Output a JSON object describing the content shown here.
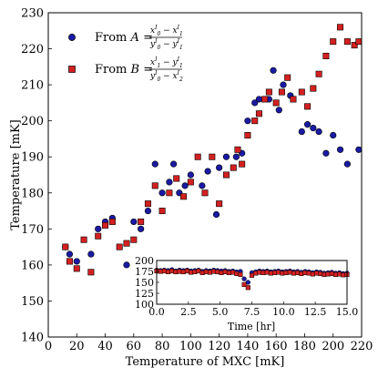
{
  "chart_data": [
    {
      "type": "scatter",
      "xlabel": "Temperature of MXC [mK]",
      "ylabel": "Temperature [mK]",
      "xlim": [
        0,
        220
      ],
      "ylim": [
        140,
        230
      ],
      "xticks": [
        0,
        20,
        40,
        60,
        80,
        100,
        120,
        140,
        160,
        180,
        200,
        220
      ],
      "yticks": [
        140,
        150,
        160,
        170,
        180,
        190,
        200,
        210,
        220,
        230
      ],
      "legend_position": "top-left",
      "series": [
        {
          "name": "From A",
          "marker": "circle",
          "color": "#1a1aa6",
          "points": [
            [
              12,
              165
            ],
            [
              15,
              163
            ],
            [
              20,
              161
            ],
            [
              30,
              163
            ],
            [
              35,
              170
            ],
            [
              40,
              172
            ],
            [
              45,
              173
            ],
            [
              55,
              160
            ],
            [
              60,
              172
            ],
            [
              65,
              170
            ],
            [
              70,
              175
            ],
            [
              75,
              188
            ],
            [
              80,
              180
            ],
            [
              85,
              183
            ],
            [
              88,
              188
            ],
            [
              92,
              180
            ],
            [
              96,
              182
            ],
            [
              100,
              185
            ],
            [
              108,
              182
            ],
            [
              112,
              186
            ],
            [
              118,
              174
            ],
            [
              120,
              187
            ],
            [
              125,
              190
            ],
            [
              132,
              190
            ],
            [
              136,
              191
            ],
            [
              140,
              200
            ],
            [
              145,
              205
            ],
            [
              148,
              206
            ],
            [
              155,
              206
            ],
            [
              158,
              214
            ],
            [
              162,
              203
            ],
            [
              165,
              210
            ],
            [
              170,
              207
            ],
            [
              178,
              197
            ],
            [
              182,
              199
            ],
            [
              186,
              198
            ],
            [
              190,
              197
            ],
            [
              195,
              191
            ],
            [
              200,
              196
            ],
            [
              205,
              192
            ],
            [
              210,
              188
            ],
            [
              218,
              192
            ]
          ]
        },
        {
          "name": "From B",
          "marker": "square",
          "color": "#d42020",
          "points": [
            [
              12,
              165
            ],
            [
              15,
              161
            ],
            [
              20,
              159
            ],
            [
              25,
              167
            ],
            [
              30,
              158
            ],
            [
              35,
              168
            ],
            [
              40,
              171
            ],
            [
              45,
              172
            ],
            [
              50,
              165
            ],
            [
              55,
              166
            ],
            [
              60,
              167
            ],
            [
              65,
              172
            ],
            [
              70,
              177
            ],
            [
              75,
              182
            ],
            [
              80,
              175
            ],
            [
              85,
              180
            ],
            [
              90,
              184
            ],
            [
              95,
              179
            ],
            [
              100,
              183
            ],
            [
              105,
              190
            ],
            [
              110,
              180
            ],
            [
              115,
              190
            ],
            [
              120,
              177
            ],
            [
              125,
              185
            ],
            [
              130,
              187
            ],
            [
              133,
              192
            ],
            [
              136,
              188
            ],
            [
              140,
              196
            ],
            [
              145,
              200
            ],
            [
              148,
              202
            ],
            [
              152,
              206
            ],
            [
              155,
              208
            ],
            [
              160,
              205
            ],
            [
              164,
              208
            ],
            [
              168,
              212
            ],
            [
              172,
              206
            ],
            [
              178,
              208
            ],
            [
              182,
              204
            ],
            [
              186,
              209
            ],
            [
              190,
              213
            ],
            [
              195,
              218
            ],
            [
              200,
              222
            ],
            [
              205,
              226
            ],
            [
              210,
              222
            ],
            [
              215,
              221
            ],
            [
              218,
              222
            ]
          ]
        }
      ]
    },
    {
      "type": "scatter",
      "xlabel": "Time [hr]",
      "ylabel": "",
      "xlim": [
        0,
        15
      ],
      "ylim": [
        100,
        200
      ],
      "xticks": [
        "0.0",
        "2.5",
        "5.0",
        "7.5",
        "10.0",
        "12.5",
        "15.0"
      ],
      "yticks": [
        "100",
        "125",
        "150",
        "175",
        "200"
      ],
      "series": [
        {
          "name": "From A",
          "marker": "circle",
          "color": "#1a1aa6",
          "points": [
            [
              0.0,
              178
            ],
            [
              0.3,
              177
            ],
            [
              0.6,
              178
            ],
            [
              0.9,
              177
            ],
            [
              1.2,
              179
            ],
            [
              1.5,
              176
            ],
            [
              1.8,
              178
            ],
            [
              2.1,
              177
            ],
            [
              2.4,
              178
            ],
            [
              2.7,
              176
            ],
            [
              3.0,
              177
            ],
            [
              3.3,
              178
            ],
            [
              3.6,
              175
            ],
            [
              3.9,
              177
            ],
            [
              4.2,
              176
            ],
            [
              4.5,
              178
            ],
            [
              4.8,
              177
            ],
            [
              5.1,
              176
            ],
            [
              5.4,
              177
            ],
            [
              5.7,
              175
            ],
            [
              6.0,
              176
            ],
            [
              6.3,
              174
            ],
            [
              6.6,
              175
            ],
            [
              6.9,
              158
            ],
            [
              7.2,
              150
            ],
            [
              7.5,
              172
            ],
            [
              7.8,
              174
            ],
            [
              8.1,
              176
            ],
            [
              8.4,
              175
            ],
            [
              8.7,
              176
            ],
            [
              9.0,
              174
            ],
            [
              9.3,
              175
            ],
            [
              9.6,
              176
            ],
            [
              9.9,
              174
            ],
            [
              10.2,
              175
            ],
            [
              10.5,
              176
            ],
            [
              10.8,
              174
            ],
            [
              11.1,
              175
            ],
            [
              11.4,
              173
            ],
            [
              11.7,
              175
            ],
            [
              12.0,
              174
            ],
            [
              12.3,
              172
            ],
            [
              12.6,
              174
            ],
            [
              12.9,
              173
            ],
            [
              13.2,
              171
            ],
            [
              13.5,
              172
            ],
            [
              13.8,
              173
            ],
            [
              14.1,
              171
            ],
            [
              14.4,
              172
            ],
            [
              14.7,
              170
            ],
            [
              15.0,
              171
            ]
          ]
        },
        {
          "name": "From B",
          "marker": "square",
          "color": "#d42020",
          "points": [
            [
              0.0,
              176
            ],
            [
              0.3,
              175
            ],
            [
              0.6,
              176
            ],
            [
              0.9,
              174
            ],
            [
              1.2,
              176
            ],
            [
              1.5,
              174
            ],
            [
              1.8,
              175
            ],
            [
              2.1,
              174
            ],
            [
              2.4,
              176
            ],
            [
              2.7,
              173
            ],
            [
              3.0,
              174
            ],
            [
              3.3,
              176
            ],
            [
              3.6,
              172
            ],
            [
              3.9,
              174
            ],
            [
              4.2,
              173
            ],
            [
              4.5,
              175
            ],
            [
              4.8,
              174
            ],
            [
              5.1,
              172
            ],
            [
              5.4,
              174
            ],
            [
              5.7,
              172
            ],
            [
              6.0,
              173
            ],
            [
              6.3,
              170
            ],
            [
              6.6,
              168
            ],
            [
              6.9,
              145
            ],
            [
              7.2,
              138
            ],
            [
              7.5,
              166
            ],
            [
              7.8,
              171
            ],
            [
              8.1,
              173
            ],
            [
              8.4,
              172
            ],
            [
              8.7,
              173
            ],
            [
              9.0,
              171
            ],
            [
              9.3,
              172
            ],
            [
              9.6,
              173
            ],
            [
              9.9,
              171
            ],
            [
              10.2,
              172
            ],
            [
              10.5,
              173
            ],
            [
              10.8,
              171
            ],
            [
              11.1,
              172
            ],
            [
              11.4,
              170
            ],
            [
              11.7,
              172
            ],
            [
              12.0,
              171
            ],
            [
              12.3,
              169
            ],
            [
              12.6,
              171
            ],
            [
              12.9,
              170
            ],
            [
              13.2,
              168
            ],
            [
              13.5,
              169
            ],
            [
              13.8,
              170
            ],
            [
              14.1,
              168
            ],
            [
              14.4,
              169
            ],
            [
              14.7,
              167
            ],
            [
              15.0,
              168
            ]
          ]
        }
      ]
    }
  ]
}
